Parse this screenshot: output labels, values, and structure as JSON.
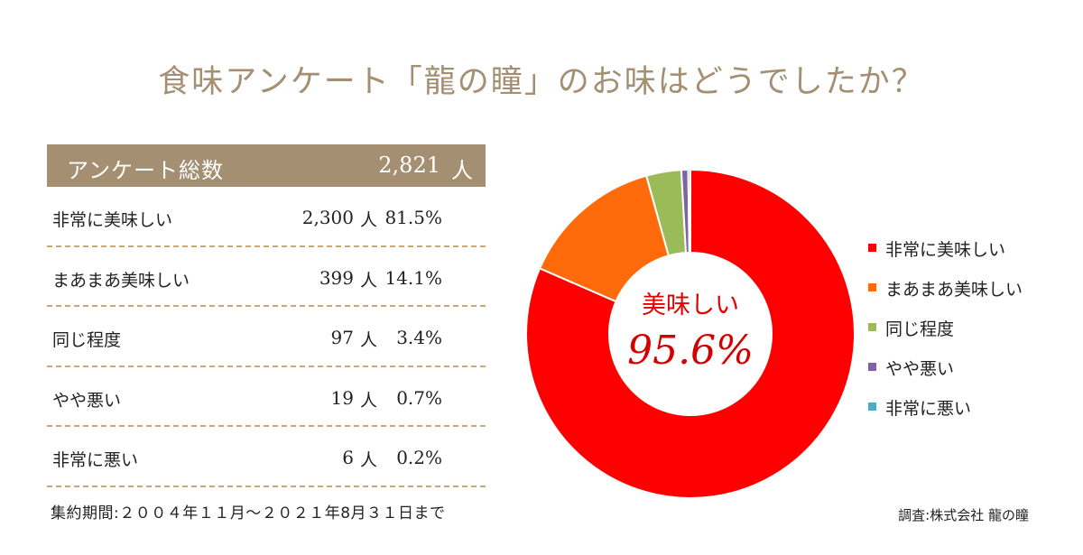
{
  "title": "食味アンケート「龍の瞳」のお味はどうでしたか？",
  "table": {
    "header_label": "アンケート総数",
    "total": "2,821",
    "unit": "人",
    "rows": [
      {
        "label": "非常に美味しい",
        "count": "2,300",
        "unit": "人",
        "pct": "81.5%"
      },
      {
        "label": "まあまあ美味しい",
        "count": "399",
        "unit": "人",
        "pct": "14.1%"
      },
      {
        "label": "同じ程度",
        "count": "97",
        "unit": "人",
        "pct": "3.4%"
      },
      {
        "label": "やや悪い",
        "count": "19",
        "unit": "人",
        "pct": "0.7%"
      },
      {
        "label": "非常に悪い",
        "count": "6",
        "unit": "人",
        "pct": "0.2%"
      }
    ]
  },
  "period": "集約期間:２００４年１１月～２０２１年8月３１日まで",
  "credit": "調査:株式会社 龍の瞳",
  "center": {
    "label": "美味しい",
    "value": "95.6%"
  },
  "chart_data": {
    "type": "pie",
    "variant": "donut",
    "categories": [
      "非常に美味しい",
      "まあまあ美味しい",
      "同じ程度",
      "やや悪い",
      "非常に悪い"
    ],
    "values": [
      2300,
      399,
      97,
      19,
      6
    ],
    "percentages": [
      81.5,
      14.1,
      3.4,
      0.7,
      0.2
    ],
    "colors": [
      "#ff0000",
      "#ff6a0a",
      "#9bbb59",
      "#8064a2",
      "#4bacc6"
    ],
    "start": "12 o'clock, clockwise",
    "legend_position": "right"
  }
}
